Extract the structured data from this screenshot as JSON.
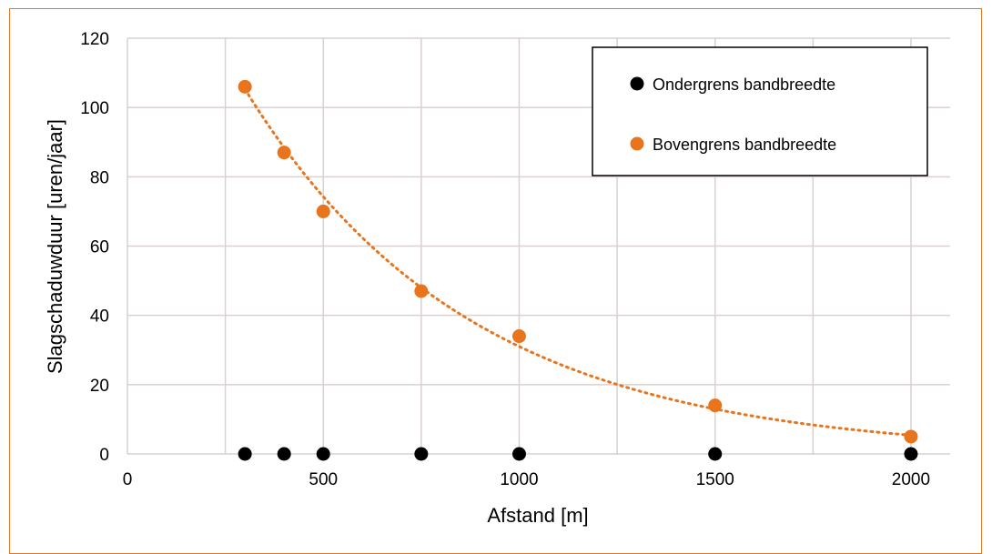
{
  "chart_data": {
    "type": "scatter",
    "xlabel": "Afstand [m]",
    "ylabel": "Slagschaduwduur [uren/jaar]",
    "xlim": [
      0,
      2100
    ],
    "ylim": [
      0,
      120
    ],
    "x_ticks": [
      0,
      500,
      1000,
      1500,
      2000
    ],
    "y_ticks": [
      0,
      20,
      40,
      60,
      80,
      100,
      120
    ],
    "grid": true,
    "legend_position": "top-right",
    "series": [
      {
        "name": "Ondergrens bandbreedte",
        "color": "#000000",
        "x": [
          300,
          400,
          500,
          750,
          1000,
          1500,
          2000
        ],
        "y": [
          0,
          0,
          0,
          0,
          0,
          0,
          0
        ]
      },
      {
        "name": "Bovengrens bandbreedte",
        "color": "#e8741e",
        "x": [
          300,
          400,
          500,
          750,
          1000,
          1500,
          2000
        ],
        "y": [
          106,
          87,
          70,
          47,
          34,
          14,
          5
        ],
        "trendline": "exponential-dotted"
      }
    ]
  }
}
